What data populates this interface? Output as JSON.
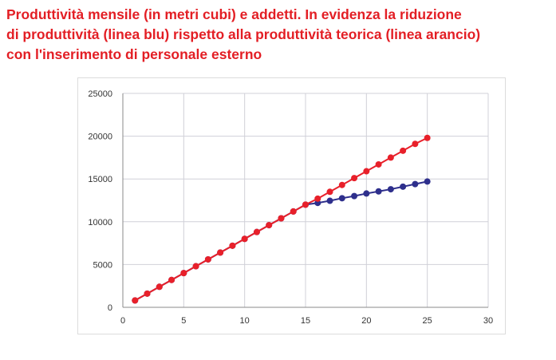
{
  "caption": {
    "line1": "Produttività mensile (in metri cubi) e addetti. In evidenza la riduzione",
    "line2": "di produttività (linea blu) rispetto alla produttività teorica (linea arancio)",
    "line3": "con l'inserimento di personale esterno"
  },
  "colors": {
    "caption": "#e31e24",
    "red_series": "#e8202a",
    "blue_series": "#2e2f8c",
    "grid": "#d0d0d8"
  },
  "chart_data": {
    "type": "line",
    "title": "",
    "xlabel": "",
    "ylabel": "",
    "xlim": [
      0,
      30
    ],
    "ylim": [
      0,
      25000
    ],
    "xticks": [
      0,
      5,
      10,
      15,
      20,
      25,
      30
    ],
    "yticks": [
      0,
      5000,
      10000,
      15000,
      20000,
      25000
    ],
    "grid": true,
    "series": [
      {
        "color": "#2e2f8c",
        "x": [
          1,
          2,
          3,
          4,
          5,
          6,
          7,
          8,
          9,
          10,
          11,
          12,
          13,
          14,
          15,
          16,
          17,
          18,
          19,
          20,
          21,
          22,
          23,
          24,
          25
        ],
        "y": [
          800,
          1600,
          2400,
          3200,
          4000,
          4800,
          5600,
          6400,
          7200,
          8000,
          8800,
          9600,
          10400,
          11200,
          12000,
          12200,
          12450,
          12750,
          13000,
          13300,
          13550,
          13800,
          14100,
          14400,
          14700
        ]
      },
      {
        "color": "#e8202a",
        "x": [
          1,
          2,
          3,
          4,
          5,
          6,
          7,
          8,
          9,
          10,
          11,
          12,
          13,
          14,
          15,
          16,
          17,
          18,
          19,
          20,
          21,
          22,
          23,
          24,
          25
        ],
        "y": [
          800,
          1600,
          2400,
          3200,
          4000,
          4800,
          5600,
          6400,
          7200,
          8000,
          8800,
          9600,
          10400,
          11200,
          12000,
          12700,
          13500,
          14300,
          15100,
          15900,
          16700,
          17500,
          18300,
          19100,
          19800
        ]
      }
    ]
  }
}
